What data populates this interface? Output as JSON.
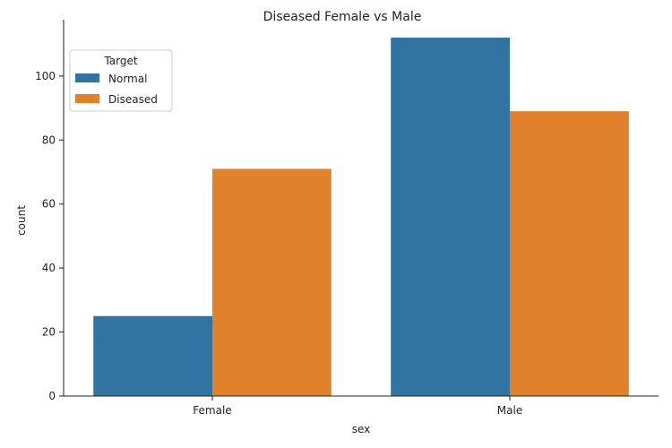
{
  "chart_data": {
    "type": "bar",
    "title": "Diseased Female vs Male",
    "xlabel": "sex",
    "ylabel": "count",
    "categories": [
      "Female",
      "Male"
    ],
    "series": [
      {
        "name": "Normal",
        "values": [
          25,
          112
        ],
        "color": "#3274a1"
      },
      {
        "name": "Diseased",
        "values": [
          71,
          89
        ],
        "color": "#e1812c"
      }
    ],
    "ylim": [
      0,
      117.6
    ],
    "yticks": [
      0,
      20,
      40,
      60,
      80,
      100
    ],
    "legend": {
      "title": "Target",
      "placement": "top-left"
    },
    "grid": false
  }
}
